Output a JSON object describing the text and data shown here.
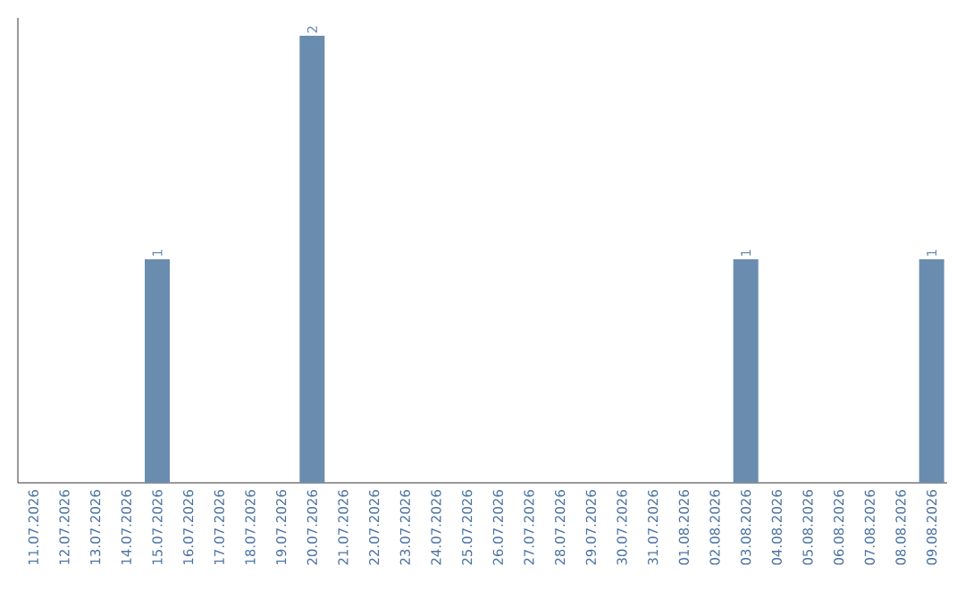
{
  "chart_data": {
    "type": "bar",
    "categories": [
      "11.07.2026",
      "12.07.2026",
      "13.07.2026",
      "14.07.2026",
      "15.07.2026",
      "16.07.2026",
      "17.07.2026",
      "18.07.2026",
      "19.07.2026",
      "20.07.2026",
      "21.07.2026",
      "22.07.2026",
      "23.07.2026",
      "24.07.2026",
      "25.07.2026",
      "26.07.2026",
      "27.07.2026",
      "28.07.2026",
      "29.07.2026",
      "30.07.2026",
      "31.07.2026",
      "01.08.2026",
      "02.08.2026",
      "03.08.2026",
      "04.08.2026",
      "05.08.2026",
      "06.08.2026",
      "07.08.2026",
      "08.08.2026",
      "09.08.2026"
    ],
    "values": [
      0,
      0,
      0,
      0,
      1,
      0,
      0,
      0,
      0,
      2,
      0,
      0,
      0,
      0,
      0,
      0,
      0,
      0,
      0,
      0,
      0,
      0,
      0,
      1,
      0,
      0,
      0,
      0,
      0,
      1
    ],
    "value_labels": [
      null,
      null,
      null,
      null,
      "1",
      null,
      null,
      null,
      null,
      "2",
      null,
      null,
      null,
      null,
      null,
      null,
      null,
      null,
      null,
      null,
      null,
      null,
      null,
      "1",
      null,
      null,
      null,
      null,
      null,
      "1"
    ],
    "color": "#6a8caf",
    "ylim": [
      0,
      2
    ],
    "tick_labels": "x"
  }
}
